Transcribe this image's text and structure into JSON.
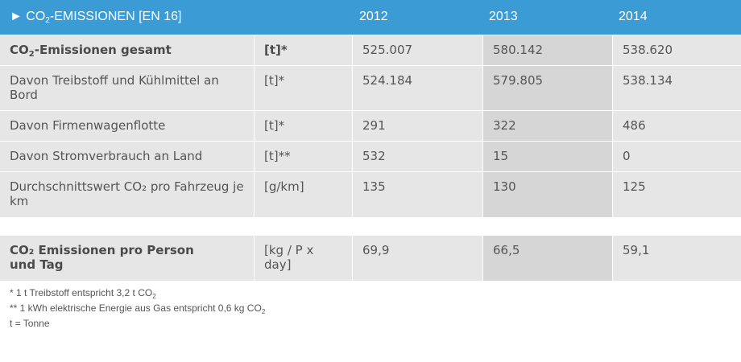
{
  "header": {
    "title_pre": "CO",
    "title_sub": "2",
    "title_post": "-EMISSIONEN [EN 16]",
    "arrow": "►",
    "years": [
      "2012",
      "2013",
      "2014"
    ]
  },
  "rows": [
    {
      "label_pre": "CO",
      "label_sub": "2",
      "label_post": "-Emissionen gesamt",
      "unit": "[t]*",
      "v2012": "525.007",
      "v2013": "580.142",
      "v2014": "538.620"
    },
    {
      "label": "Davon Treibstoff und Kühlmittel an Bord",
      "unit": "[t]*",
      "v2012": "524.184",
      "v2013": "579.805",
      "v2014": "538.134"
    },
    {
      "label": "Davon Firmenwagenflotte",
      "unit": "[t]*",
      "v2012": "291",
      "v2013": "322",
      "v2014": "486"
    },
    {
      "label": "Davon Stromverbrauch an Land",
      "unit": "[t]**",
      "v2012": "532",
      "v2013": "15",
      "v2014": "0"
    },
    {
      "label": "Durchschnittswert CO₂ pro Fahrzeug je km",
      "unit": "[g/km]",
      "v2012": "135",
      "v2013": "130",
      "v2014": "125"
    },
    {
      "label": "CO₂ Emissionen pro Person und Tag",
      "unit": "[kg / P x day]",
      "v2012": "69,9",
      "v2013": "66,5",
      "v2014": "59,1"
    }
  ],
  "footnotes": {
    "n1_pre": "* 1 t Treibstoff entspricht 3,2 t CO",
    "n1_sub": "2",
    "n2_pre": "** 1 kWh elektrische Energie aus Gas entspricht 0,6 kg CO",
    "n2_sub": "2",
    "n3": "t = Tonne"
  }
}
